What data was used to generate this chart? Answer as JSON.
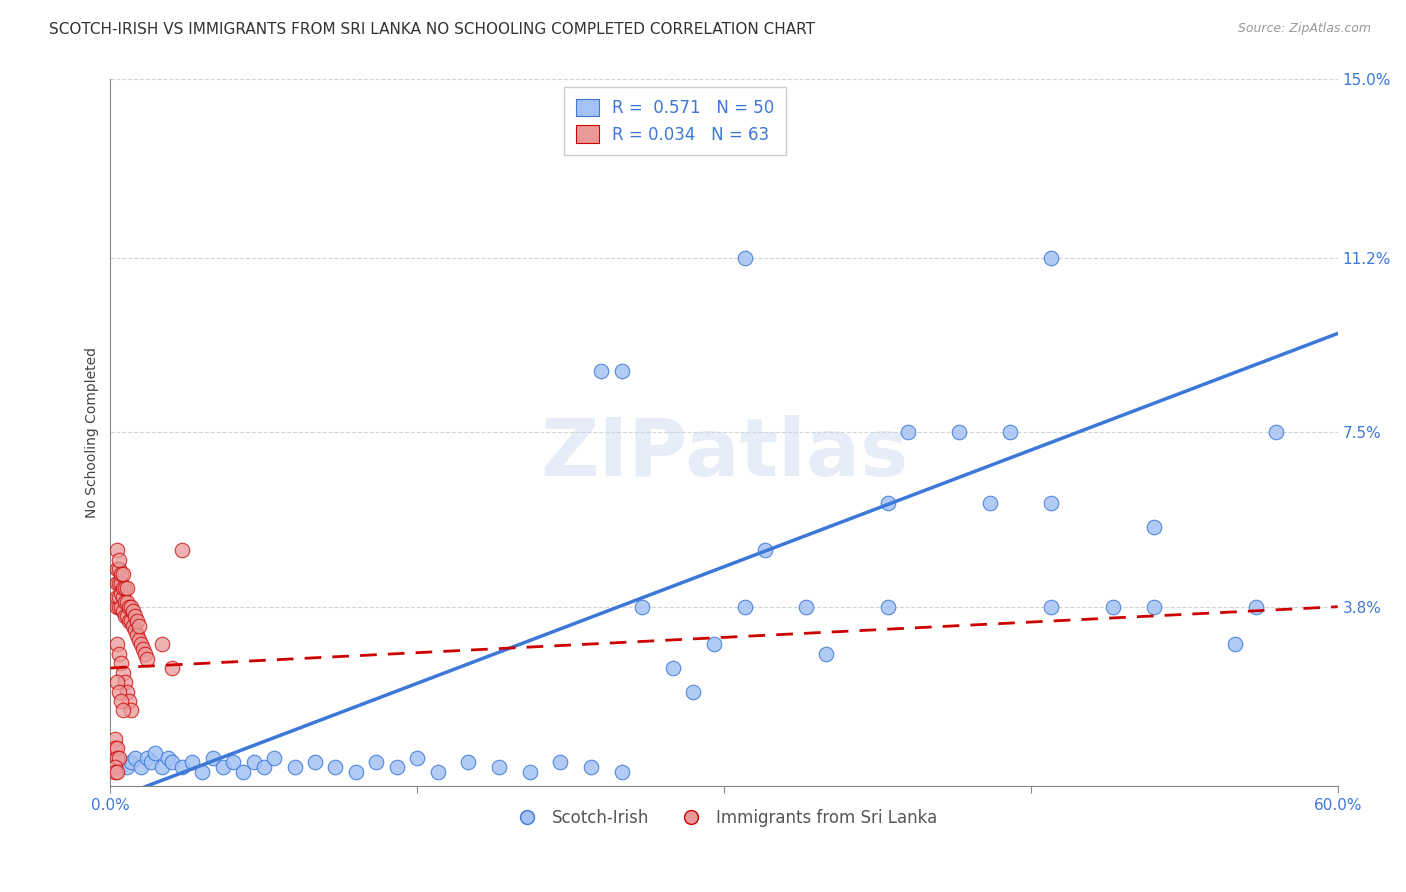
{
  "title": "SCOTCH-IRISH VS IMMIGRANTS FROM SRI LANKA NO SCHOOLING COMPLETED CORRELATION CHART",
  "source": "Source: ZipAtlas.com",
  "ylabel": "No Schooling Completed",
  "xlim": [
    0,
    0.6
  ],
  "ylim": [
    0,
    0.15
  ],
  "xticks": [
    0.0,
    0.15,
    0.3,
    0.45,
    0.6
  ],
  "xticklabels": [
    "0.0%",
    "",
    "",
    "",
    "60.0%"
  ],
  "yticks": [
    0.0,
    0.038,
    0.075,
    0.112,
    0.15
  ],
  "yticklabels": [
    "",
    "3.8%",
    "7.5%",
    "11.2%",
    "15.0%"
  ],
  "watermark": "ZIPatlas",
  "legend_label1": "Scotch-Irish",
  "legend_label2": "Immigrants from Sri Lanka",
  "blue_color": "#a4c2f4",
  "blue_edge": "#3c78d8",
  "pink_color": "#ea9999",
  "pink_edge": "#cc0000",
  "line_blue_color": "#3c78d8",
  "line_pink_color": "#cc0000",
  "tick_color": "#3c78d8",
  "blue_R": 0.571,
  "blue_N": 50,
  "pink_R": 0.034,
  "pink_N": 63,
  "title_fontsize": 11,
  "tick_fontsize": 11,
  "background_color": "#ffffff",
  "grid_color": "#d0d0d0",
  "blue_scatter_x": [
    0.008,
    0.01,
    0.012,
    0.015,
    0.018,
    0.02,
    0.022,
    0.025,
    0.028,
    0.03,
    0.035,
    0.04,
    0.045,
    0.05,
    0.055,
    0.06,
    0.065,
    0.07,
    0.075,
    0.08,
    0.09,
    0.1,
    0.11,
    0.12,
    0.13,
    0.14,
    0.15,
    0.16,
    0.175,
    0.19,
    0.205,
    0.22,
    0.235,
    0.25,
    0.26,
    0.275,
    0.285,
    0.295,
    0.24,
    0.31,
    0.32,
    0.34,
    0.35,
    0.38,
    0.39,
    0.415,
    0.44,
    0.46,
    0.49,
    0.51
  ],
  "blue_scatter_y": [
    0.004,
    0.005,
    0.006,
    0.004,
    0.006,
    0.005,
    0.007,
    0.004,
    0.006,
    0.005,
    0.004,
    0.005,
    0.003,
    0.006,
    0.004,
    0.005,
    0.003,
    0.005,
    0.004,
    0.006,
    0.004,
    0.005,
    0.004,
    0.003,
    0.005,
    0.004,
    0.006,
    0.003,
    0.005,
    0.004,
    0.003,
    0.005,
    0.004,
    0.003,
    0.038,
    0.025,
    0.02,
    0.03,
    0.088,
    0.038,
    0.05,
    0.038,
    0.028,
    0.038,
    0.075,
    0.075,
    0.075,
    0.038,
    0.038,
    0.038
  ],
  "blue_extra_x": [
    0.25,
    0.46,
    0.31,
    0.56,
    0.57,
    0.46,
    0.38,
    0.43,
    0.51,
    0.55
  ],
  "blue_extra_y": [
    0.088,
    0.112,
    0.112,
    0.038,
    0.075,
    0.06,
    0.06,
    0.06,
    0.055,
    0.03
  ],
  "pink_scatter_x": [
    0.003,
    0.003,
    0.003,
    0.003,
    0.003,
    0.004,
    0.004,
    0.004,
    0.004,
    0.004,
    0.005,
    0.005,
    0.005,
    0.005,
    0.006,
    0.006,
    0.006,
    0.006,
    0.007,
    0.007,
    0.007,
    0.008,
    0.008,
    0.008,
    0.009,
    0.009,
    0.01,
    0.01,
    0.011,
    0.011,
    0.012,
    0.012,
    0.013,
    0.013,
    0.014,
    0.014,
    0.015,
    0.016,
    0.017,
    0.018,
    0.003,
    0.004,
    0.005,
    0.006,
    0.007,
    0.008,
    0.009,
    0.01,
    0.003,
    0.004,
    0.005,
    0.006,
    0.002,
    0.002,
    0.003,
    0.003,
    0.004,
    0.002,
    0.002,
    0.003,
    0.025,
    0.03,
    0.035
  ],
  "pink_scatter_y": [
    0.038,
    0.04,
    0.043,
    0.046,
    0.05,
    0.038,
    0.04,
    0.043,
    0.046,
    0.048,
    0.038,
    0.041,
    0.043,
    0.045,
    0.037,
    0.04,
    0.042,
    0.045,
    0.036,
    0.039,
    0.042,
    0.036,
    0.039,
    0.042,
    0.035,
    0.038,
    0.035,
    0.038,
    0.034,
    0.037,
    0.033,
    0.036,
    0.032,
    0.035,
    0.031,
    0.034,
    0.03,
    0.029,
    0.028,
    0.027,
    0.03,
    0.028,
    0.026,
    0.024,
    0.022,
    0.02,
    0.018,
    0.016,
    0.022,
    0.02,
    0.018,
    0.016,
    0.01,
    0.008,
    0.008,
    0.006,
    0.006,
    0.004,
    0.003,
    0.003,
    0.03,
    0.025,
    0.05
  ],
  "blue_line_x0": 0.0,
  "blue_line_y0": -0.003,
  "blue_line_x1": 0.6,
  "blue_line_y1": 0.096,
  "pink_line_x0": 0.0,
  "pink_line_y0": 0.025,
  "pink_line_x1": 0.6,
  "pink_line_y1": 0.038
}
